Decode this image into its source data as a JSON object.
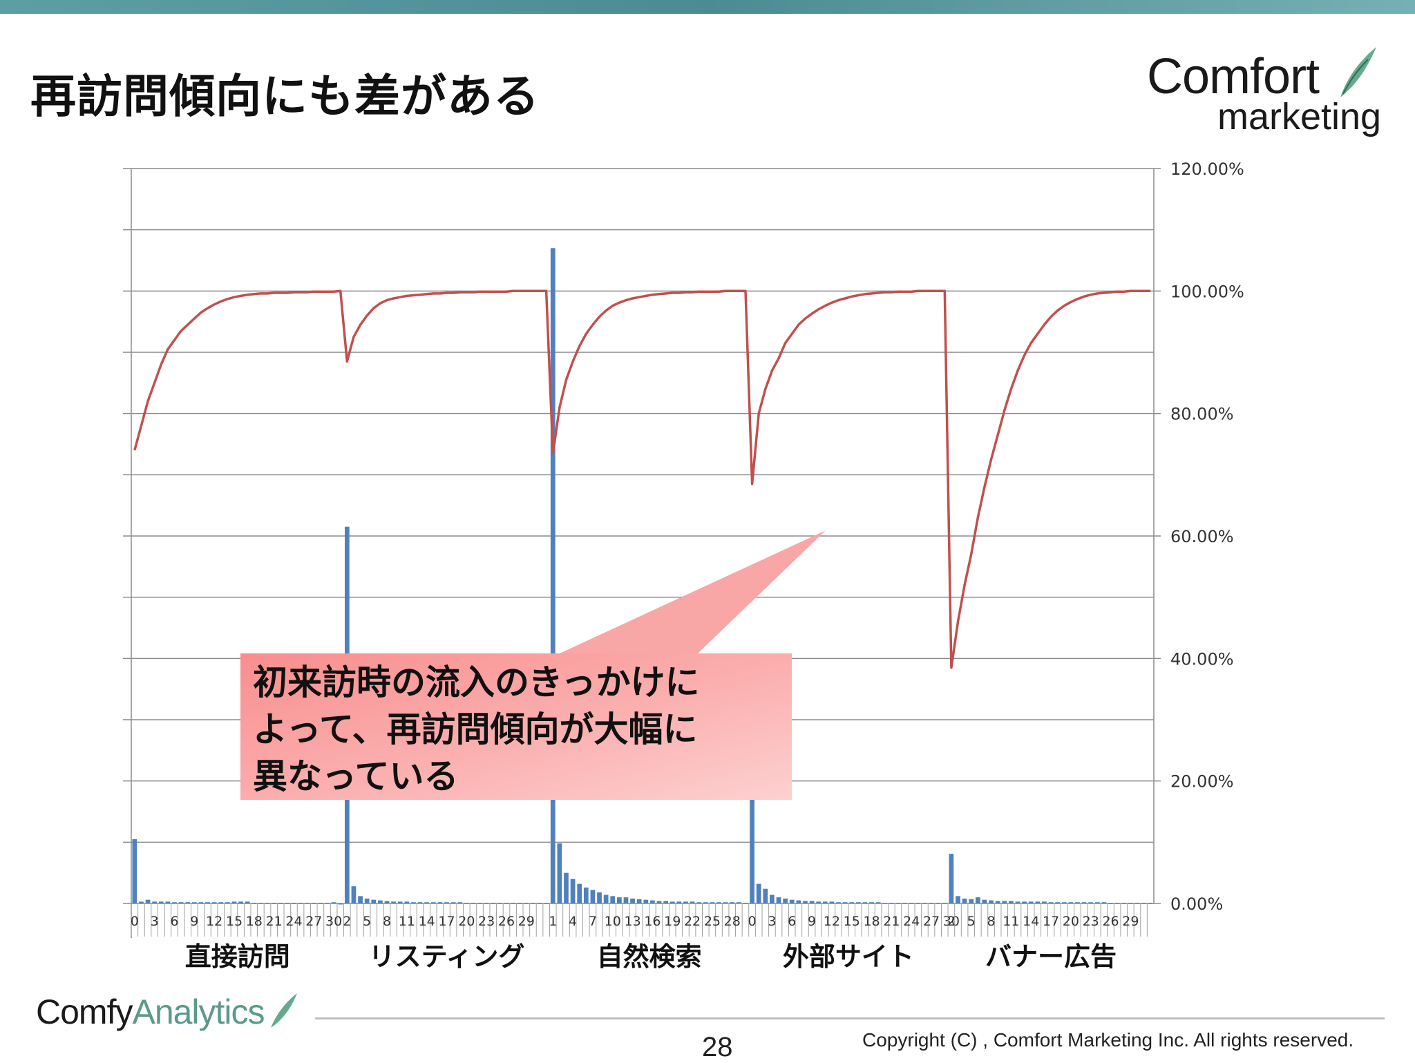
{
  "slide": {
    "title": "再訪問傾向にも差がある",
    "logo_top_line1": "Comfort",
    "logo_top_line2": "marketing",
    "callout_lines": [
      "初来訪時の流入のきっかけに",
      "よって、再訪問傾向が大幅に",
      "異なっている"
    ],
    "bottom_logo_part1": "Comfy",
    "bottom_logo_part2": "Analytics",
    "page_number": "28",
    "copyright": "Copyright (C) , Comfort Marketing Inc. All rights reserved."
  },
  "colors": {
    "bar": "#4f81bd",
    "line": "#c0504d",
    "grid": "#8c8c8c",
    "callout": "#f9a0a0",
    "accent_leaf": "#4a9a7a"
  },
  "chart_data": {
    "type": "bar+line",
    "ylim": [
      0,
      120
    ],
    "y_ticks": [
      "0.00%",
      "20.00%",
      "40.00%",
      "60.00%",
      "80.00%",
      "100.00%",
      "120.00%"
    ],
    "grid": true,
    "legend": "none",
    "groups": [
      {
        "label": "直接訪問",
        "x_start": 0,
        "x_end": 31,
        "tick_labels": [
          "0",
          "3",
          "6",
          "9",
          "12",
          "15",
          "18",
          "21",
          "24",
          "27",
          "30"
        ],
        "bars": [
          10.5,
          0.3,
          0.6,
          0.3,
          0.3,
          0.3,
          0.2,
          0.2,
          0.2,
          0.2,
          0.2,
          0.2,
          0.2,
          0.2,
          0.2,
          0.3,
          0.3,
          0.3,
          0.1,
          0.1,
          0.1,
          0.1,
          0.1,
          0.1,
          0.1,
          0.1,
          0.1,
          0.1,
          0.1,
          0.1,
          0.2,
          0.0
        ],
        "line": [
          74,
          78,
          82,
          85,
          88,
          90.5,
          92,
          93.5,
          94.5,
          95.5,
          96.5,
          97.2,
          97.8,
          98.3,
          98.7,
          99,
          99.2,
          99.4,
          99.5,
          99.6,
          99.6,
          99.7,
          99.7,
          99.7,
          99.8,
          99.8,
          99.8,
          99.9,
          99.9,
          99.9,
          99.9,
          100
        ]
      },
      {
        "label": "リスティング",
        "x_start": 0,
        "x_end": 30,
        "tick_labels": [
          "2",
          "5",
          "8",
          "11",
          "14",
          "17",
          "20",
          "23",
          "26",
          "29"
        ],
        "bars": [
          61.5,
          2.8,
          1.2,
          0.8,
          0.6,
          0.5,
          0.4,
          0.3,
          0.3,
          0.3,
          0.2,
          0.2,
          0.2,
          0.2,
          0.2,
          0.2,
          0.2,
          0.2,
          0.1,
          0.1,
          0.1,
          0.1,
          0.1,
          0.1,
          0.1,
          0.1,
          0.1,
          0.1,
          0.1,
          0.1,
          0.1
        ],
        "line": [
          88.5,
          92.5,
          94.5,
          96,
          97.2,
          98,
          98.5,
          98.8,
          99,
          99.2,
          99.3,
          99.4,
          99.5,
          99.6,
          99.6,
          99.7,
          99.7,
          99.8,
          99.8,
          99.8,
          99.9,
          99.9,
          99.9,
          99.9,
          99.9,
          100,
          100,
          100,
          100,
          100,
          100
        ]
      },
      {
        "label": "自然検索",
        "x_start": 0,
        "x_end": 29,
        "tick_labels": [
          "1",
          "4",
          "7",
          "10",
          "13",
          "16",
          "19",
          "22",
          "25",
          "28"
        ],
        "bars": [
          107,
          9.8,
          5,
          4,
          3.2,
          2.6,
          2.2,
          1.8,
          1.4,
          1.2,
          1,
          1,
          0.8,
          0.7,
          0.6,
          0.5,
          0.4,
          0.4,
          0.3,
          0.3,
          0.3,
          0.3,
          0.2,
          0.2,
          0.2,
          0.2,
          0.2,
          0.2,
          0.2,
          0.1
        ],
        "line": [
          73.5,
          81,
          85.5,
          88.5,
          91,
          93,
          94.5,
          95.8,
          96.8,
          97.6,
          98.1,
          98.5,
          98.8,
          99,
          99.2,
          99.4,
          99.5,
          99.6,
          99.7,
          99.7,
          99.8,
          99.8,
          99.9,
          99.9,
          99.9,
          99.9,
          100,
          100,
          100,
          100
        ]
      },
      {
        "label": "外部サイト",
        "x_start": 0,
        "x_end": 29,
        "tick_labels": [
          "0",
          "3",
          "6",
          "9",
          "12",
          "15",
          "18",
          "21",
          "24",
          "27",
          "30"
        ],
        "bars": [
          28,
          3.2,
          2.4,
          1.4,
          1.0,
          0.8,
          0.6,
          0.5,
          0.4,
          0.4,
          0.3,
          0.3,
          0.3,
          0.2,
          0.2,
          0.2,
          0.2,
          0.2,
          0.2,
          0.2,
          0.1,
          0.1,
          0.1,
          0.1,
          0.1,
          0.1,
          0.1,
          0.1,
          0.1,
          0.1
        ],
        "line": [
          68.5,
          80,
          84,
          87,
          89,
          91.5,
          93,
          94.5,
          95.5,
          96.3,
          97,
          97.6,
          98.1,
          98.5,
          98.8,
          99.1,
          99.3,
          99.5,
          99.6,
          99.7,
          99.8,
          99.8,
          99.9,
          99.9,
          99.9,
          100,
          100,
          100,
          100,
          100
        ]
      },
      {
        "label": "バナー広告",
        "x_start": 0,
        "x_end": 30,
        "tick_labels": [
          "2",
          "5",
          "8",
          "11",
          "14",
          "17",
          "20",
          "23",
          "26",
          "29"
        ],
        "bars": [
          8.1,
          1.2,
          0.8,
          0.7,
          1.0,
          0.6,
          0.5,
          0.4,
          0.4,
          0.4,
          0.3,
          0.3,
          0.3,
          0.3,
          0.3,
          0.2,
          0.2,
          0.2,
          0.2,
          0.2,
          0.2,
          0.2,
          0.2,
          0.2,
          0.1,
          0.1,
          0.1,
          0.1,
          0.1,
          0.1,
          0.1
        ],
        "line": [
          38.5,
          46,
          52,
          57,
          63,
          68,
          72.5,
          76.5,
          80.5,
          84,
          87,
          89.5,
          91.5,
          93,
          94.5,
          95.8,
          96.8,
          97.6,
          98.2,
          98.7,
          99.1,
          99.4,
          99.6,
          99.7,
          99.8,
          99.9,
          99.9,
          100,
          100,
          100,
          100
        ]
      }
    ]
  }
}
